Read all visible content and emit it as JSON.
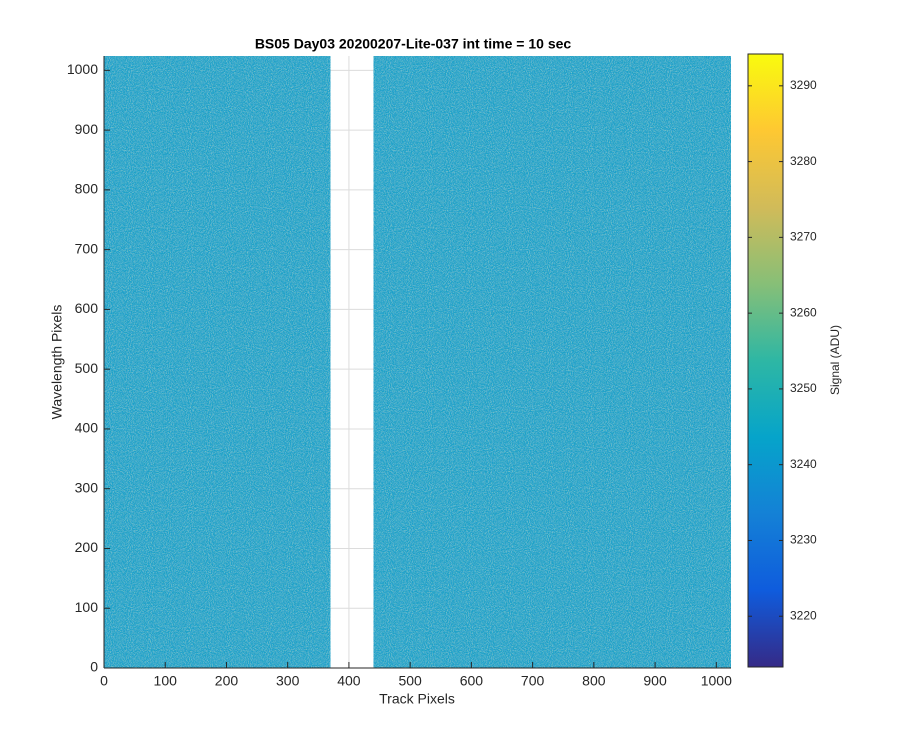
{
  "chart_data": {
    "type": "image",
    "title": "BS05 Day03 20200207-Lite-037 int time = 10 sec",
    "xlabel": "Track Pixels",
    "ylabel": "Wavelength Pixels",
    "xlim": [
      0,
      1024
    ],
    "ylim": [
      0,
      1024
    ],
    "xticks": [
      0,
      100,
      200,
      300,
      400,
      500,
      600,
      700,
      800,
      900,
      1000
    ],
    "yticks": [
      0,
      100,
      200,
      300,
      400,
      500,
      600,
      700,
      800,
      900,
      1000
    ],
    "data_columns": [
      [
        0,
        370
      ],
      [
        440,
        1024
      ]
    ],
    "color": "#1fa2c8",
    "grid": true,
    "colorbar": {
      "label": "Signal (ADU)",
      "colormap": "parula",
      "clim": [
        3213.3,
        3294.2
      ],
      "ticks": [
        3220,
        3230,
        3240,
        3250,
        3260,
        3270,
        3280,
        3290
      ]
    }
  }
}
